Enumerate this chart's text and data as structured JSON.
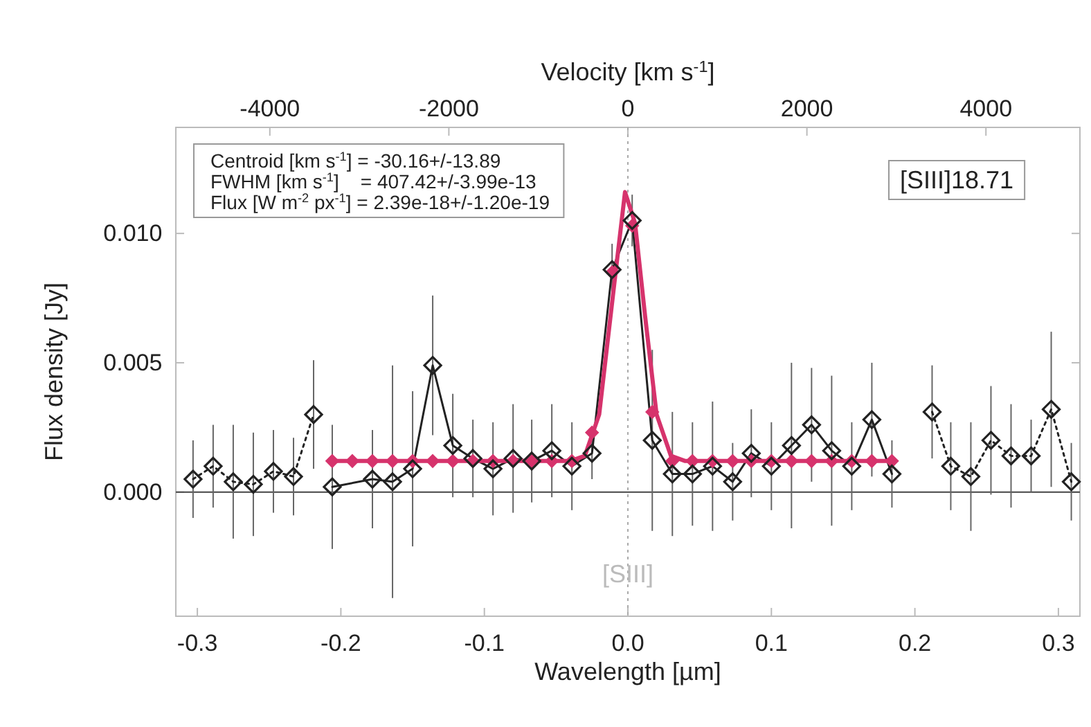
{
  "chart_data": {
    "type": "line",
    "xlabel": "Wavelength [µm]",
    "ylabel": "Flux density [Jy]",
    "x2label": "Velocity [km s$^{-1}$]",
    "xlim": [
      -0.315,
      0.315
    ],
    "xticks": [
      -0.3,
      -0.2,
      -0.1,
      {
        "value": 0,
        "label": "0.0"
      },
      0.1,
      0.2,
      0.3
    ],
    "x2lim": [
      -5050,
      5050
    ],
    "x2ticks": [
      -4000,
      -2000,
      0,
      2000,
      4000
    ],
    "ylim": [
      -0.0048,
      0.0141
    ],
    "yticks": [
      {
        "value": 0,
        "label": "0.000"
      },
      {
        "value": 0.005,
        "label": "0.005"
      },
      {
        "value": 0.01,
        "label": "0.010"
      }
    ],
    "grid": false,
    "ref_lines": [
      {
        "axis": "y",
        "value": 0,
        "color": "#444444",
        "line_style": "solid"
      },
      {
        "axis": "x",
        "value": 0,
        "color": "#aaaaaa",
        "line_style": "dotted"
      }
    ],
    "annotations": [
      {
        "text": "[SIII]",
        "x": 0,
        "y": -0.0035
      },
      "Centroid [km s$^{-1}$] = -30.16+/-13.89",
      "FWHM [km s$^{-1}$]    = 407.42+/-3.99e-13",
      "Flux [W m$^{-2}$ px$^{-1}$] = 2.39e-18+/-1.20e-19",
      "[SIII]18.71"
    ],
    "series": [
      {
        "color": "#222222",
        "marker": "diamond",
        "line_style": "dotted",
        "x": [
          -0.303,
          -0.289,
          -0.275,
          -0.261,
          -0.247,
          -0.233,
          -0.219
        ],
        "values": [
          0.0005,
          0.001,
          0.0004,
          0.0003,
          0.0008,
          0.0006,
          0.003
        ],
        "errors": [
          0.0015,
          0.0016,
          0.0022,
          0.002,
          0.0016,
          0.0015,
          0.0021
        ]
      },
      {
        "color": "#222222",
        "marker": "diamond",
        "line_style": "solid",
        "x": [
          -0.206,
          -0.178,
          -0.164,
          -0.15,
          -0.136,
          -0.122,
          -0.108,
          -0.094,
          -0.08,
          -0.067,
          -0.053,
          -0.039,
          -0.025,
          -0.011,
          0.003,
          0.017,
          0.031,
          0.045,
          0.059,
          0.073,
          0.086,
          0.1,
          0.114,
          0.128,
          0.142,
          0.156,
          0.17,
          0.184
        ],
        "values": [
          0.0002,
          0.0005,
          0.0004,
          0.0009,
          0.0049,
          0.0018,
          0.0013,
          0.0009,
          0.0013,
          0.0012,
          0.0016,
          0.001,
          0.0015,
          0.0086,
          0.0105,
          0.002,
          0.0007,
          0.0007,
          0.001,
          0.0004,
          0.0015,
          0.001,
          0.0018,
          0.0026,
          0.0016,
          0.001,
          0.0028,
          0.0007
        ],
        "errors": [
          0.0024,
          0.0019,
          0.0045,
          0.003,
          0.0027,
          0.002,
          0.0015,
          0.0018,
          0.0021,
          0.0016,
          0.0018,
          0.0017,
          0.001,
          0.001,
          0.001,
          0.0035,
          0.0024,
          0.002,
          0.0025,
          0.0015,
          0.0017,
          0.0017,
          0.0032,
          0.0022,
          0.0029,
          0.0017,
          0.0022,
          0.0013
        ]
      },
      {
        "color": "#222222",
        "marker": "diamond",
        "line_style": "dotted",
        "x": [
          0.212,
          0.225,
          0.239,
          0.253,
          0.267,
          0.281,
          0.295,
          0.309
        ],
        "values": [
          0.0031,
          0.001,
          0.0006,
          0.002,
          0.0014,
          0.0014,
          0.0032,
          0.0004
        ],
        "errors": [
          0.0018,
          0.0017,
          0.0021,
          0.0021,
          0.002,
          0.0014,
          0.003,
          0.0015
        ]
      },
      {
        "color": "#d6336c",
        "marker": "none",
        "line_style": "solid",
        "x": [
          -0.206,
          -0.04,
          -0.03,
          -0.02,
          -0.01,
          -0.002,
          0.005,
          0.012,
          0.02,
          0.03,
          0.04,
          0.184
        ],
        "values": [
          0.0012,
          0.0012,
          0.0014,
          0.003,
          0.0078,
          0.0116,
          0.0104,
          0.0068,
          0.003,
          0.0014,
          0.0012,
          0.0012
        ]
      },
      {
        "type": "scatter",
        "color": "#d6336c",
        "marker": "diamond",
        "x": [
          -0.206,
          -0.192,
          -0.178,
          -0.164,
          -0.15,
          -0.136,
          -0.122,
          -0.108,
          -0.094,
          -0.08,
          -0.067,
          -0.053,
          -0.039,
          -0.025,
          -0.011,
          0.003,
          0.017,
          0.031,
          0.045,
          0.059,
          0.073,
          0.086,
          0.1,
          0.114,
          0.128,
          0.142,
          0.156,
          0.17,
          0.184
        ],
        "values": [
          0.0012,
          0.0012,
          0.0012,
          0.0012,
          0.0012,
          0.0012,
          0.0012,
          0.0012,
          0.0012,
          0.0012,
          0.0012,
          0.0012,
          0.0012,
          0.0023,
          0.0085,
          0.0103,
          0.0031,
          0.0012,
          0.0012,
          0.0012,
          0.0012,
          0.0012,
          0.0012,
          0.0012,
          0.0012,
          0.0012,
          0.0012,
          0.0012,
          0.0012
        ]
      }
    ]
  }
}
